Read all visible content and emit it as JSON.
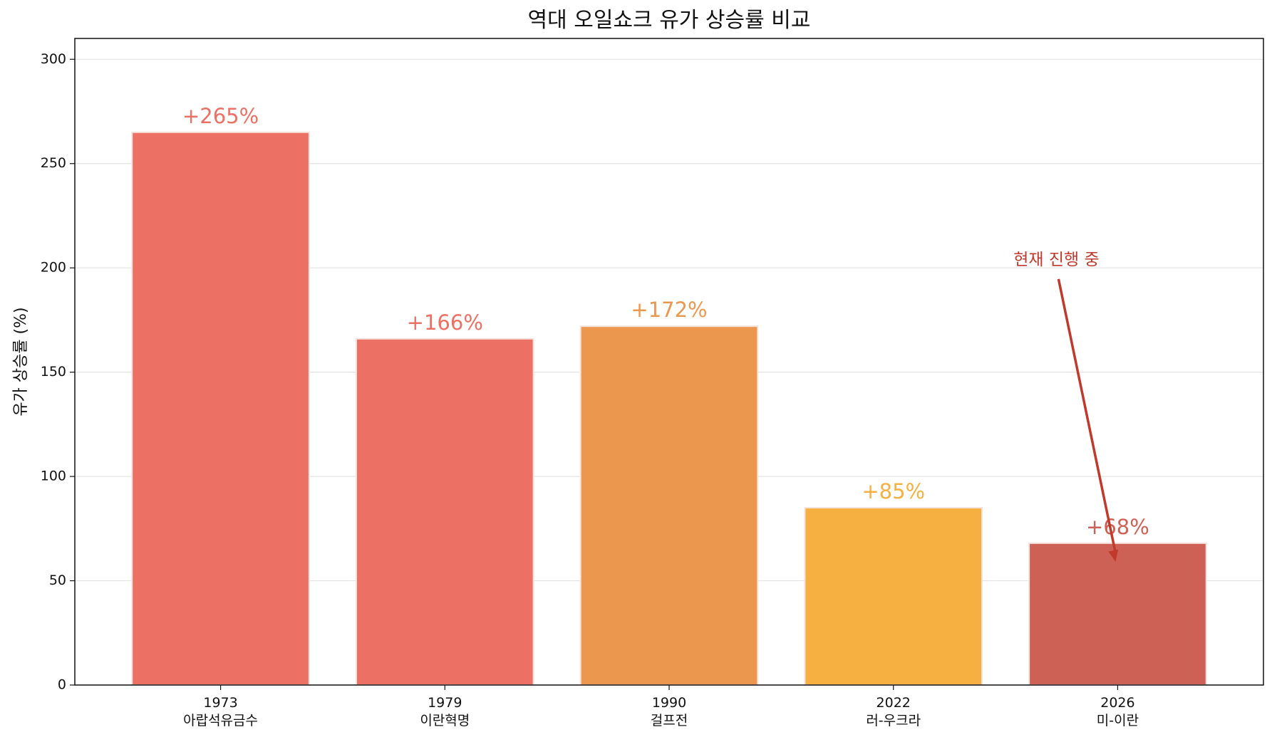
{
  "chart_data": {
    "type": "bar",
    "title": "역대 오일쇼크 유가 상승률 비교",
    "xlabel": "",
    "ylabel": "유가 상승률 (%)",
    "ylim": [
      0,
      310
    ],
    "yticks": [
      0,
      50,
      100,
      150,
      200,
      250,
      300
    ],
    "grid": "horizontal",
    "categories": [
      {
        "year": "1973",
        "event": "아랍석유금수"
      },
      {
        "year": "1979",
        "event": "이란혁명"
      },
      {
        "year": "1990",
        "event": "걸프전"
      },
      {
        "year": "2022",
        "event": "러-우크라"
      },
      {
        "year": "2026",
        "event": "미-이란"
      }
    ],
    "values": [
      265,
      166,
      172,
      85,
      68
    ],
    "data_labels": [
      "+265%",
      "+166%",
      "+172%",
      "+85%",
      "+68%"
    ],
    "colors": [
      "#ec7063",
      "#ec7063",
      "#eb984e",
      "#f5b041",
      "#cd6155"
    ],
    "annotation": {
      "text": "현재 진행 중",
      "target_category_index": 4,
      "target_value": 68,
      "text_value": 196,
      "color": "#c0392b"
    }
  }
}
